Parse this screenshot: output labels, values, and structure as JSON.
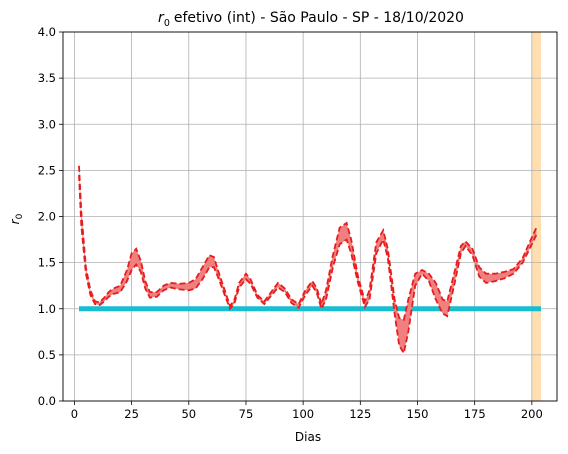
{
  "chart_data": {
    "type": "line",
    "title": "efetivo (int) - São Paulo - SP - 18/10/2020",
    "title_symbol": "r",
    "title_subscript": "0",
    "xlabel": "Dias",
    "ylabel_symbol": "r",
    "ylabel_subscript": "0",
    "xlim": [
      -5,
      211
    ],
    "ylim": [
      0,
      4
    ],
    "xticks": [
      0,
      25,
      50,
      75,
      100,
      125,
      150,
      175,
      200
    ],
    "yticks": [
      "0.0",
      "0.5",
      "1.0",
      "1.5",
      "2.0",
      "2.5",
      "3.0",
      "3.5",
      "4.0"
    ],
    "grid": true,
    "colors": {
      "band_fill": "#f08080",
      "band_edge": "#e81c1c",
      "threshold": "#17becf",
      "highlight": "#ffdfb0"
    },
    "highlight_span": [
      200,
      204
    ],
    "threshold": {
      "y": 1.0,
      "x": [
        2,
        204
      ]
    },
    "series": [
      {
        "role": "upper",
        "x": [
          2,
          3,
          5,
          7,
          9,
          11,
          13,
          15,
          17,
          20,
          23,
          25,
          27,
          29,
          31,
          33,
          36,
          39,
          42,
          46,
          50,
          53,
          56,
          59,
          61,
          63,
          66,
          68,
          70,
          72,
          75,
          77,
          80,
          83,
          86,
          89,
          92,
          95,
          98,
          101,
          104,
          106,
          108,
          110,
          113,
          116,
          119,
          121,
          124,
          127,
          129,
          132,
          135,
          137,
          140,
          142,
          144,
          146,
          149,
          152,
          155,
          158,
          161,
          163,
          166,
          169,
          171,
          174,
          177,
          180,
          184,
          188,
          192,
          196,
          199,
          202
        ],
        "y": [
          2.55,
          2.05,
          1.45,
          1.2,
          1.08,
          1.07,
          1.12,
          1.18,
          1.22,
          1.25,
          1.42,
          1.6,
          1.65,
          1.52,
          1.3,
          1.18,
          1.18,
          1.25,
          1.28,
          1.27,
          1.28,
          1.32,
          1.45,
          1.58,
          1.56,
          1.4,
          1.18,
          1.03,
          1.1,
          1.28,
          1.38,
          1.32,
          1.15,
          1.08,
          1.18,
          1.28,
          1.22,
          1.1,
          1.05,
          1.2,
          1.3,
          1.22,
          1.05,
          1.2,
          1.58,
          1.88,
          1.93,
          1.75,
          1.35,
          1.08,
          1.2,
          1.72,
          1.85,
          1.65,
          1.1,
          0.9,
          0.88,
          1.1,
          1.38,
          1.42,
          1.38,
          1.28,
          1.1,
          1.08,
          1.38,
          1.68,
          1.73,
          1.65,
          1.45,
          1.38,
          1.38,
          1.4,
          1.43,
          1.55,
          1.72,
          1.88
        ]
      },
      {
        "role": "lower",
        "x": [
          2,
          3,
          5,
          7,
          9,
          11,
          13,
          15,
          17,
          20,
          23,
          25,
          27,
          29,
          31,
          33,
          36,
          39,
          42,
          46,
          50,
          53,
          56,
          59,
          61,
          63,
          66,
          68,
          70,
          72,
          75,
          77,
          80,
          83,
          86,
          89,
          92,
          95,
          98,
          101,
          104,
          106,
          108,
          110,
          113,
          116,
          119,
          121,
          124,
          127,
          129,
          132,
          135,
          137,
          140,
          142,
          144,
          146,
          149,
          152,
          155,
          158,
          161,
          163,
          166,
          169,
          171,
          174,
          177,
          180,
          184,
          188,
          192,
          196,
          199,
          202
        ],
        "y": [
          2.45,
          1.9,
          1.38,
          1.15,
          1.05,
          1.04,
          1.08,
          1.13,
          1.16,
          1.18,
          1.3,
          1.42,
          1.48,
          1.4,
          1.22,
          1.12,
          1.13,
          1.2,
          1.23,
          1.21,
          1.2,
          1.22,
          1.32,
          1.45,
          1.45,
          1.33,
          1.13,
          1.0,
          1.06,
          1.23,
          1.32,
          1.27,
          1.12,
          1.05,
          1.14,
          1.23,
          1.18,
          1.06,
          1.01,
          1.15,
          1.25,
          1.17,
          1.0,
          1.1,
          1.45,
          1.7,
          1.75,
          1.6,
          1.28,
          1.02,
          1.1,
          1.6,
          1.75,
          1.55,
          0.95,
          0.6,
          0.52,
          0.75,
          1.25,
          1.38,
          1.3,
          1.1,
          0.95,
          0.92,
          1.25,
          1.6,
          1.68,
          1.58,
          1.35,
          1.28,
          1.3,
          1.33,
          1.38,
          1.5,
          1.65,
          1.8
        ]
      }
    ]
  }
}
